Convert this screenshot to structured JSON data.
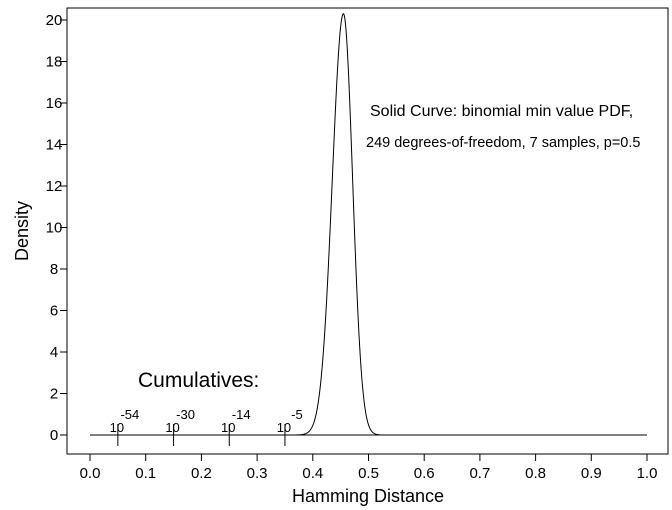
{
  "chart_data": {
    "type": "line",
    "xlabel": "Hamming Distance",
    "ylabel": "Density",
    "xlim": [
      0.0,
      1.0
    ],
    "ylim": [
      0,
      20.6
    ],
    "x_ticks": [
      "0.0",
      "0.1",
      "0.2",
      "0.3",
      "0.4",
      "0.5",
      "0.6",
      "0.7",
      "0.8",
      "0.9",
      "1.0"
    ],
    "y_ticks": [
      "0",
      "2",
      "4",
      "6",
      "8",
      "10",
      "12",
      "14",
      "16",
      "18",
      "20"
    ],
    "grid": false,
    "curve": {
      "kind": "binomial min value PDF",
      "degrees_of_freedom": 249,
      "samples": 7,
      "p": 0.5,
      "peak_x": 0.455,
      "peak_density": 20.3,
      "nonzero_range": [
        0.37,
        0.52
      ]
    },
    "annotations": {
      "line1": "Solid Curve:  binomial min value PDF,",
      "line2": "249 degrees-of-freedom, 7 samples, p=0.5"
    },
    "cumulatives": {
      "title": "Cumulatives:",
      "markers": [
        {
          "x": 0.05,
          "base": "10",
          "exponent": "-54"
        },
        {
          "x": 0.15,
          "base": "10",
          "exponent": "-30"
        },
        {
          "x": 0.25,
          "base": "10",
          "exponent": "-14"
        },
        {
          "x": 0.35,
          "base": "10",
          "exponent": "-5"
        }
      ]
    }
  }
}
